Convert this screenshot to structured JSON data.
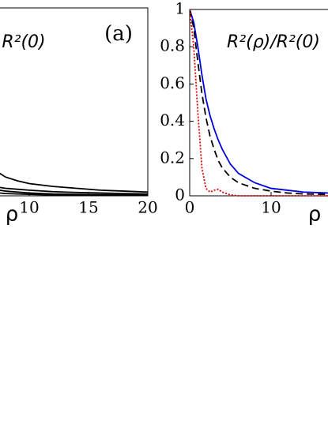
{
  "chart_data": [
    {
      "type": "line",
      "annotation": "R²(0)",
      "panel_label": "(a)",
      "xlabel": "ρ",
      "xlim": [
        0,
        20
      ],
      "ylim": [
        0,
        1
      ],
      "xticks": [
        10,
        15,
        20
      ],
      "x": [
        7.5,
        8,
        9,
        10,
        12,
        14,
        16,
        18,
        20
      ],
      "series": [
        {
          "color": "#000000",
          "values": [
            0.12,
            0.1,
            0.08,
            0.065,
            0.05,
            0.04,
            0.03,
            0.025,
            0.02
          ]
        },
        {
          "color": "#000000",
          "values": [
            0.045,
            0.04,
            0.035,
            0.03,
            0.022,
            0.018,
            0.015,
            0.012,
            0.01
          ]
        },
        {
          "color": "#000000",
          "values": [
            0.03,
            0.025,
            0.02,
            0.015,
            0.01,
            0.008,
            0.006,
            0.005,
            0.004
          ]
        },
        {
          "color": "#000000",
          "values": [
            0.015,
            0.012,
            0.01,
            0.008,
            0.005,
            0.004,
            0.003,
            0.002,
            0.002
          ]
        }
      ]
    },
    {
      "type": "line",
      "annotation": "R²(ρ)/R²(0)",
      "xlabel": "ρ",
      "xlim": [
        0,
        20
      ],
      "ylim": [
        0,
        1
      ],
      "xticks": [
        0,
        10
      ],
      "yticks": [
        0,
        0.2,
        0.4,
        0.6,
        0.8,
        1
      ],
      "x": [
        0,
        0.5,
        1,
        1.5,
        2,
        2.5,
        3,
        3.5,
        4,
        5,
        6,
        8,
        10,
        12,
        14,
        17
      ],
      "series": [
        {
          "color": "#0000dd",
          "style": "solid",
          "values": [
            1,
            0.93,
            0.8,
            0.65,
            0.52,
            0.43,
            0.36,
            0.3,
            0.25,
            0.17,
            0.12,
            0.07,
            0.04,
            0.03,
            0.02,
            0.015
          ]
        },
        {
          "color": "#000000",
          "style": "dashed",
          "values": [
            1,
            0.9,
            0.72,
            0.55,
            0.42,
            0.32,
            0.25,
            0.19,
            0.15,
            0.1,
            0.07,
            0.04,
            0.025,
            0.015,
            0.01,
            0.008
          ]
        },
        {
          "color": "#e00000",
          "style": "dotted",
          "values": [
            1,
            0.8,
            0.45,
            0.15,
            0.04,
            0.02,
            0.03,
            0.035,
            0.02,
            0.005,
            0,
            0,
            0,
            0,
            0,
            0
          ]
        }
      ]
    }
  ]
}
